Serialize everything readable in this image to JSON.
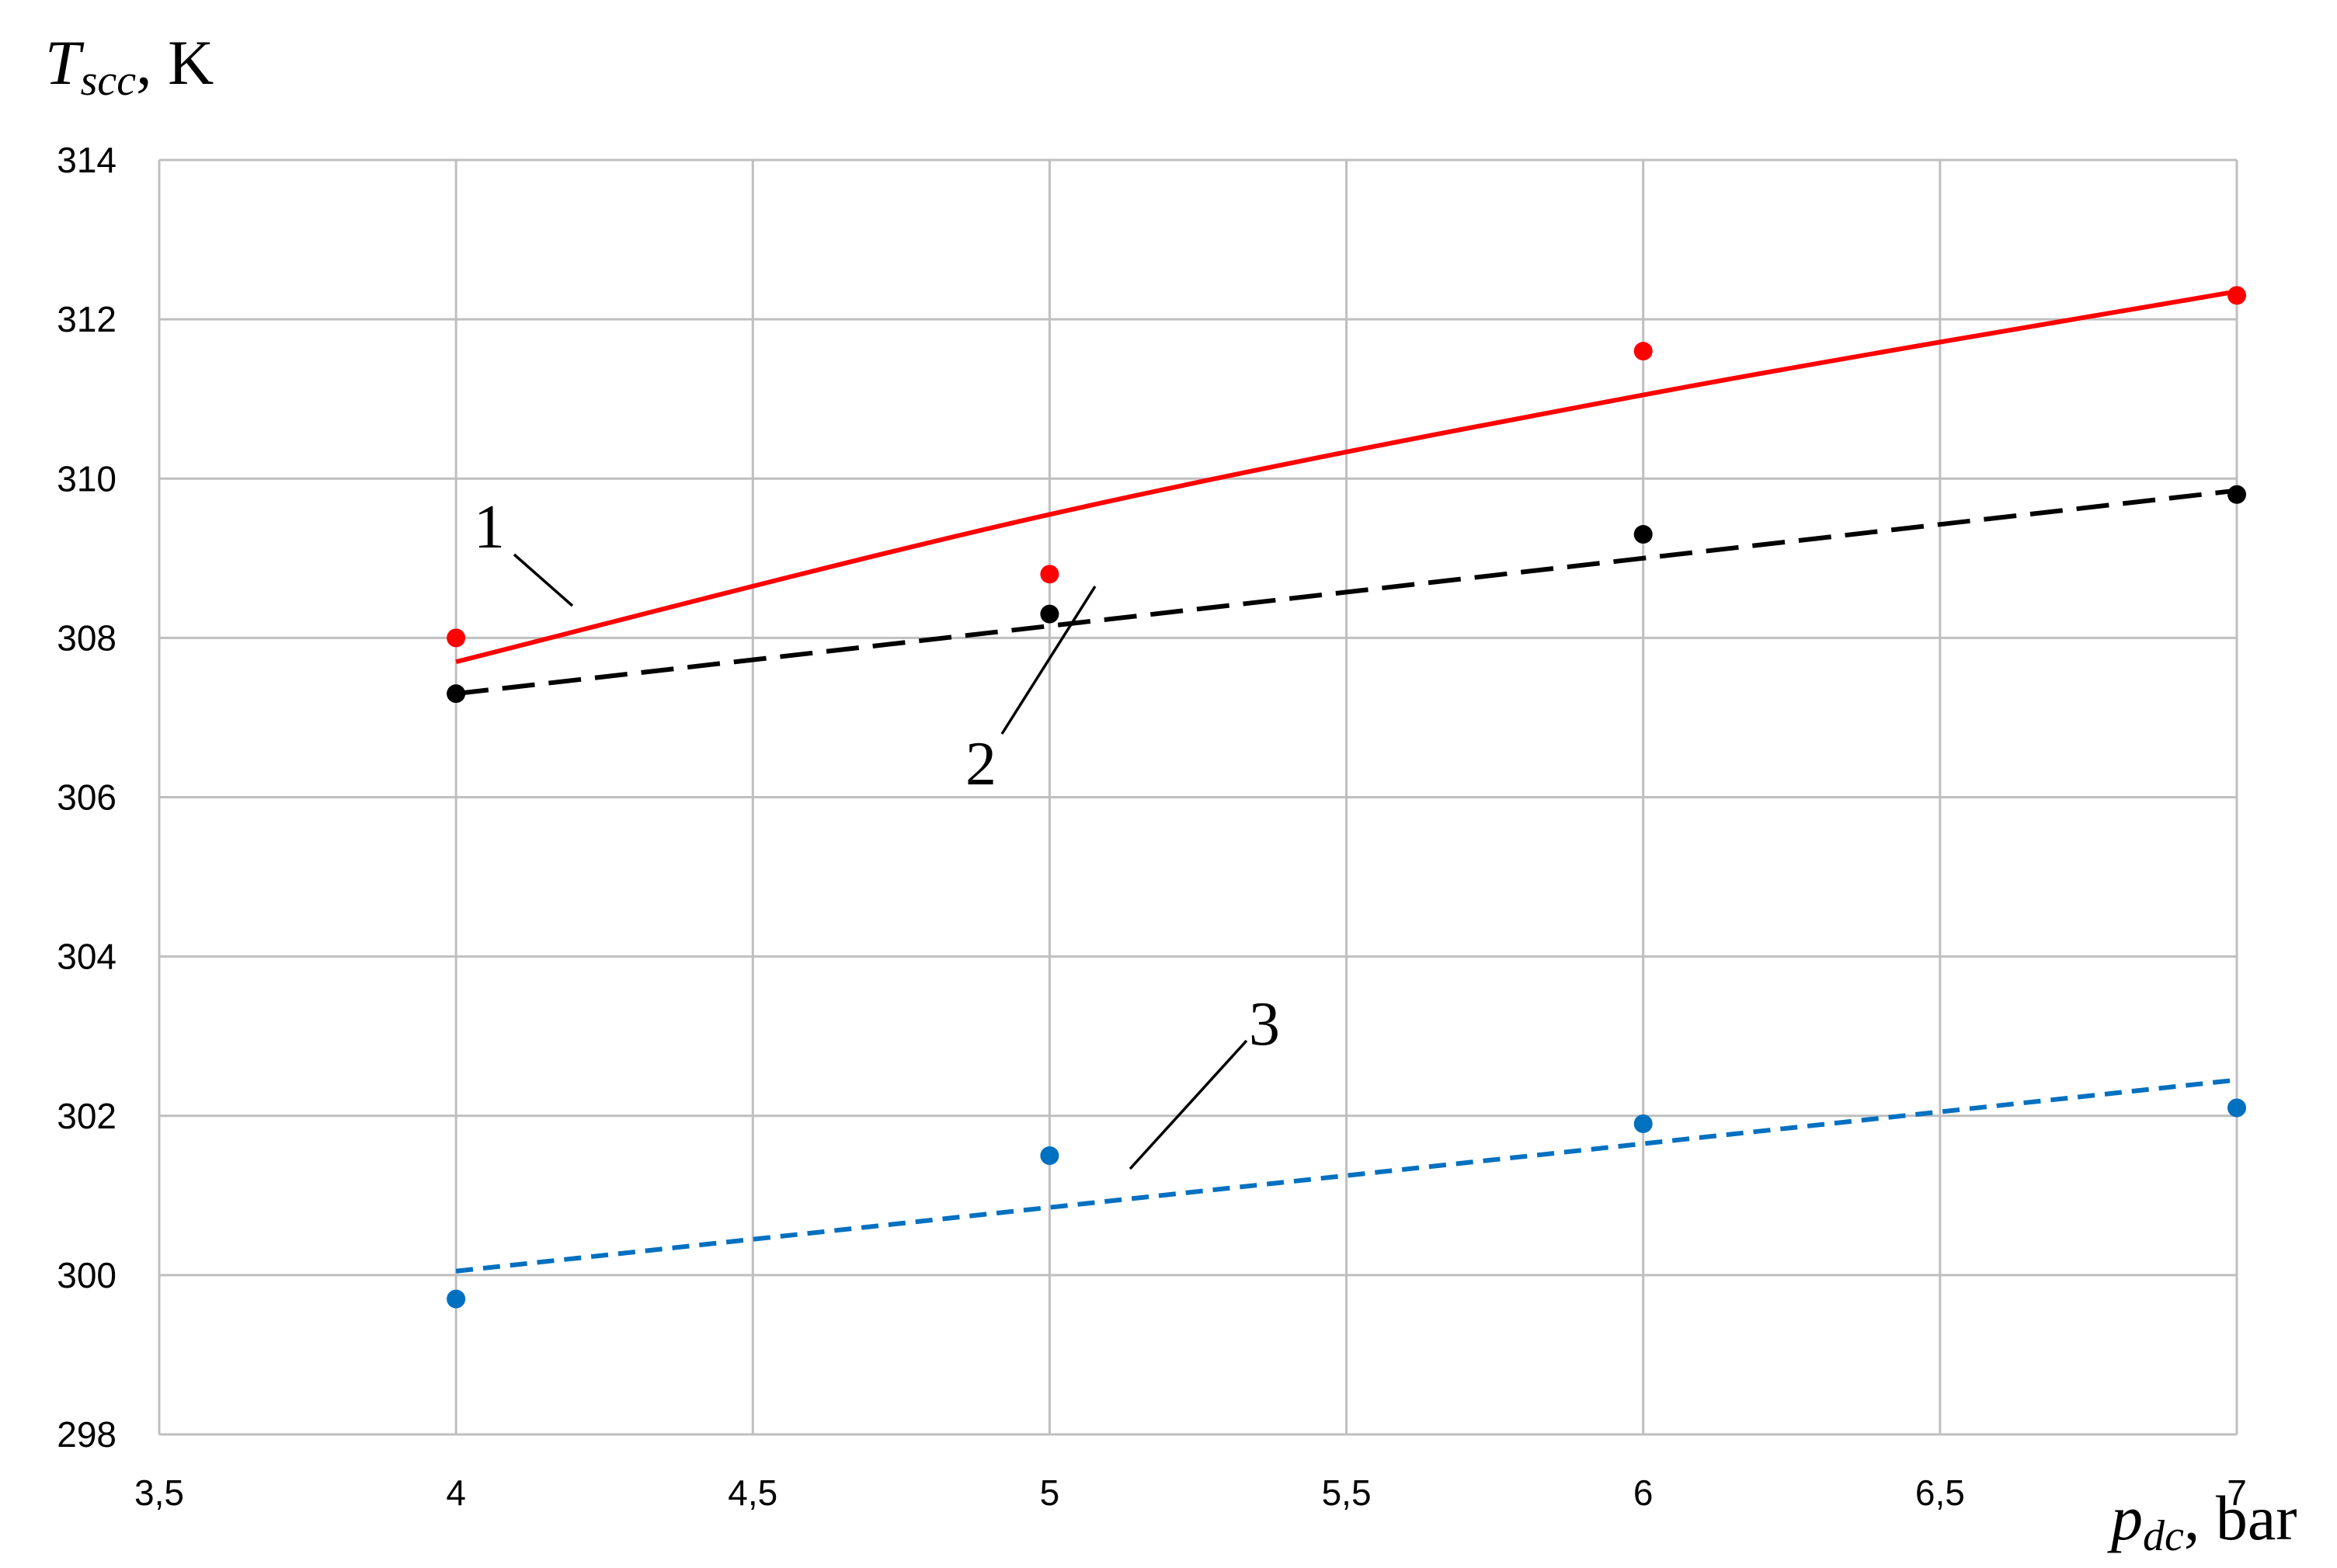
{
  "chart_data": {
    "type": "line",
    "title": "",
    "ylabel": {
      "symbol": "T",
      "subscript": "scc",
      "unit": ", K"
    },
    "xlabel": {
      "symbol": "p",
      "subscript": "dc",
      "unit": ", bar"
    },
    "xlim": [
      3.5,
      7.0
    ],
    "ylim": [
      298,
      314
    ],
    "x_ticks": [
      "3,5",
      "4",
      "4,5",
      "5",
      "5,5",
      "6",
      "6,5",
      "7"
    ],
    "x_tick_values": [
      3.5,
      4.0,
      4.5,
      5.0,
      5.5,
      6.0,
      6.5,
      7.0
    ],
    "y_ticks": [
      "298",
      "300",
      "302",
      "304",
      "306",
      "308",
      "310",
      "312",
      "314"
    ],
    "y_tick_values": [
      298,
      300,
      302,
      304,
      306,
      308,
      310,
      312,
      314
    ],
    "grid": true,
    "series": [
      {
        "label": "1",
        "color": "#ff0000",
        "line_style": "solid",
        "points": [
          {
            "x": 4,
            "y": 308.0
          },
          {
            "x": 5,
            "y": 308.8
          },
          {
            "x": 6,
            "y": 311.6
          },
          {
            "x": 7,
            "y": 312.3
          }
        ],
        "trend": [
          {
            "x": 4.0,
            "y": 307.7
          },
          {
            "x": 5.0,
            "y": 309.55
          },
          {
            "x": 6.0,
            "y": 311.05
          },
          {
            "x": 7.0,
            "y": 312.35
          }
        ]
      },
      {
        "label": "2",
        "color": "#000000",
        "line_style": "dashed",
        "points": [
          {
            "x": 4,
            "y": 307.3
          },
          {
            "x": 5,
            "y": 308.3
          },
          {
            "x": 6,
            "y": 309.3
          },
          {
            "x": 7,
            "y": 309.8
          }
        ],
        "trend": [
          {
            "x": 4.0,
            "y": 307.3
          },
          {
            "x": 7.0,
            "y": 309.85
          }
        ]
      },
      {
        "label": "3",
        "color": "#0070c0",
        "line_style": "short-dashed",
        "points": [
          {
            "x": 4,
            "y": 299.7
          },
          {
            "x": 5,
            "y": 301.5
          },
          {
            "x": 6,
            "y": 301.9
          },
          {
            "x": 7,
            "y": 302.1
          }
        ],
        "trend": [
          {
            "x": 4.0,
            "y": 300.05
          },
          {
            "x": 7.0,
            "y": 302.45
          }
        ]
      }
    ]
  }
}
